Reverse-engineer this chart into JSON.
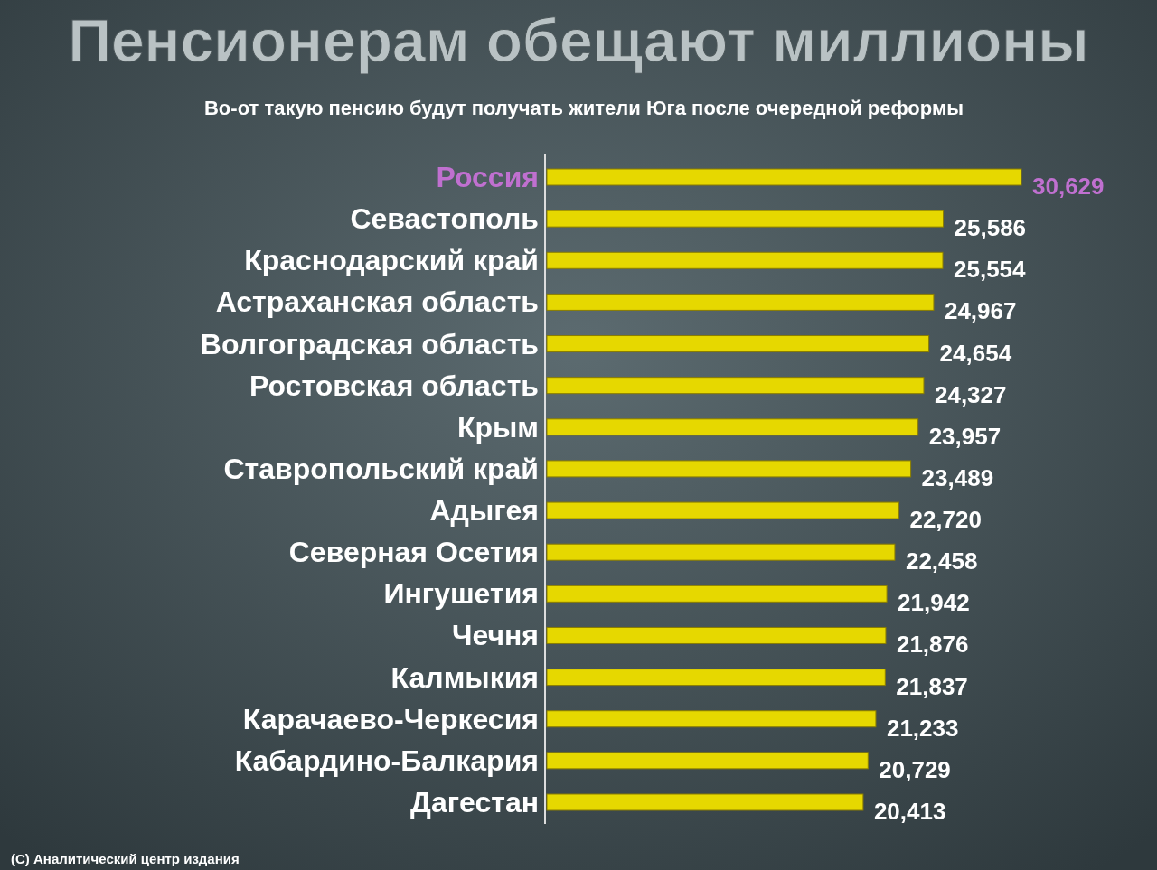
{
  "chart_data": {
    "type": "bar",
    "orientation": "horizontal",
    "relative": false,
    "title": "Пенсионерам обещают миллионы",
    "subtitle": "Во-от такую пенсию будут получать жители Юга после очередной реформы",
    "categories": [
      "Россия",
      "Севастополь",
      "Краснодарский край",
      "Астраханская область",
      "Волгоградская область",
      "Ростовская область",
      "Крым",
      "Ставропольский край",
      "Адыгея",
      "Северная Осетия",
      "Ингушетия",
      "Чечня",
      "Калмыкия",
      "Карачаево-Черкесия",
      "Кабардино-Балкария",
      "Дагестан"
    ],
    "values": [
      30629,
      25586,
      25554,
      24967,
      24654,
      24327,
      23957,
      23489,
      22720,
      22458,
      21942,
      21876,
      21837,
      21233,
      20729,
      20413
    ],
    "value_labels": [
      "30,629",
      "25,586",
      "25,554",
      "24,967",
      "24,654",
      "24,327",
      "23,957",
      "23,489",
      "22,720",
      "22,458",
      "21,942",
      "21,876",
      "21,837",
      "21,233",
      "20,729",
      "20,413"
    ],
    "color": "#e6d800",
    "annotations": [
      "(С) Аналитический центр издания"
    ]
  }
}
